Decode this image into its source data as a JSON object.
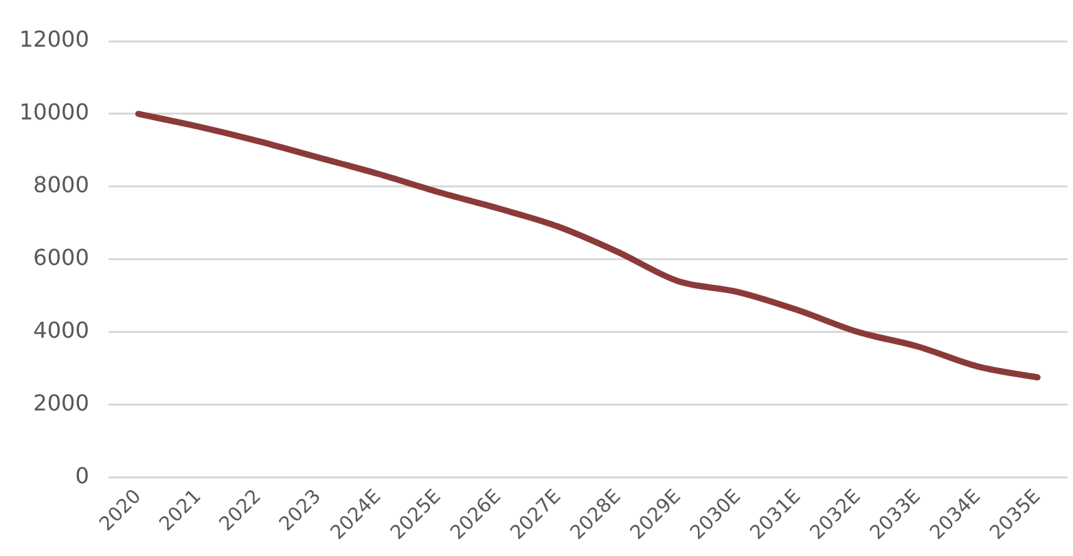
{
  "chart_data": {
    "type": "line",
    "categories": [
      "2020",
      "2021",
      "2022",
      "2023",
      "2024E",
      "2025E",
      "2026E",
      "2027E",
      "2028E",
      "2029E",
      "2030E",
      "2031E",
      "2032E",
      "2033E",
      "2034E",
      "2035E"
    ],
    "series": [
      {
        "color": "#8b3a3a",
        "values": [
          10000,
          9650,
          9250,
          8800,
          8350,
          7850,
          7400,
          6900,
          6200,
          5400,
          5100,
          4600,
          4000,
          3600,
          3050,
          2750
        ]
      }
    ],
    "ylim": [
      0,
      12000
    ],
    "yticks": [
      0,
      2000,
      4000,
      6000,
      8000,
      10000,
      12000
    ],
    "grid": "y",
    "legend": false,
    "marker": "none",
    "line_style": "solid"
  }
}
